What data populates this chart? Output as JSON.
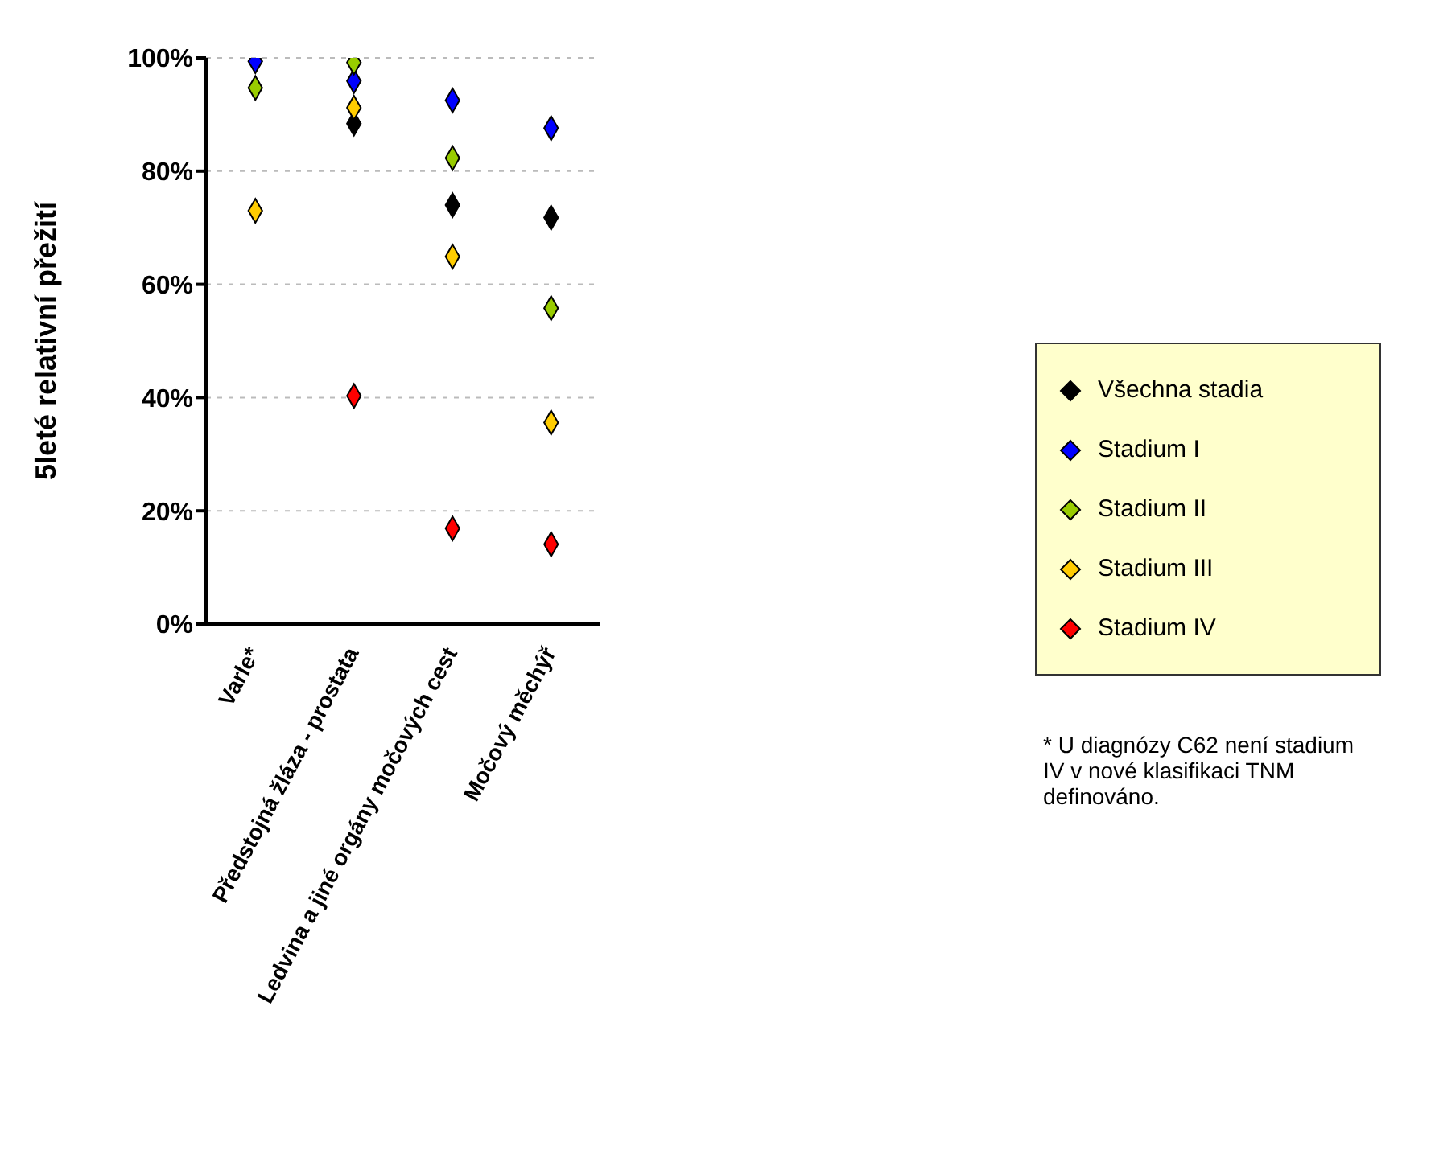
{
  "chart_data": {
    "type": "scatter",
    "ylabel": "5leté relativní přežití",
    "categories": [
      "Varle*",
      "Předstojná žláza - prostata",
      "Ledvina a jiné orgány močových cest",
      "Močový měchýř"
    ],
    "series": [
      {
        "name": "Všechna stadia",
        "color": "#000000",
        "values": [
          null,
          88.4,
          74,
          71.8
        ]
      },
      {
        "name": "Stadium I",
        "color": "#0000ff",
        "values": [
          99.4,
          95.9,
          92.5,
          87.6
        ]
      },
      {
        "name": "Stadium II",
        "color": "#99cc00",
        "values": [
          94.7,
          99.2,
          82.3,
          55.8
        ]
      },
      {
        "name": "Stadium III",
        "color": "#ffcc00",
        "values": [
          73,
          91.2,
          64.9,
          35.6
        ]
      },
      {
        "name": "Stadium IV",
        "color": "#ff0000",
        "values": [
          null,
          40.3,
          16.9,
          14.1
        ]
      }
    ],
    "ylim": [
      0,
      100
    ],
    "yticks": [
      {
        "value": 0,
        "label": "0%"
      },
      {
        "value": 20,
        "label": "20%"
      },
      {
        "value": 40,
        "label": "40%"
      },
      {
        "value": 60,
        "label": "60%"
      },
      {
        "value": 80,
        "label": "80%"
      },
      {
        "value": 100,
        "label": "100%"
      }
    ],
    "grid": "y",
    "legend": "right",
    "marker": "diamond",
    "annotations": [
      "* U diagnózy C62 není stadium IV v nové klasifikaci TNM definováno."
    ]
  }
}
